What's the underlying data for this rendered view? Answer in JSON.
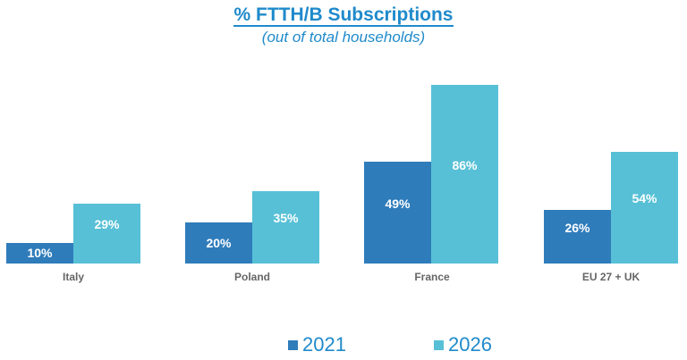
{
  "chart_data": {
    "type": "bar",
    "title": "% FTTH/B Subscriptions",
    "subtitle": "(out of total households)",
    "categories": [
      "Italy",
      "Poland",
      "France",
      "EU 27 + UK"
    ],
    "series": [
      {
        "name": "2021",
        "color": "#2f7cbb",
        "values": [
          10,
          20,
          49,
          26
        ]
      },
      {
        "name": "2026",
        "color": "#57c0d6",
        "values": [
          29,
          35,
          86,
          54
        ]
      }
    ],
    "labels": {
      "s2021": [
        "10%",
        "20%",
        "49%",
        "26%"
      ],
      "s2026": [
        "29%",
        "35%",
        "86%",
        "54%"
      ]
    },
    "legend_position": "bottom",
    "grid": false
  }
}
